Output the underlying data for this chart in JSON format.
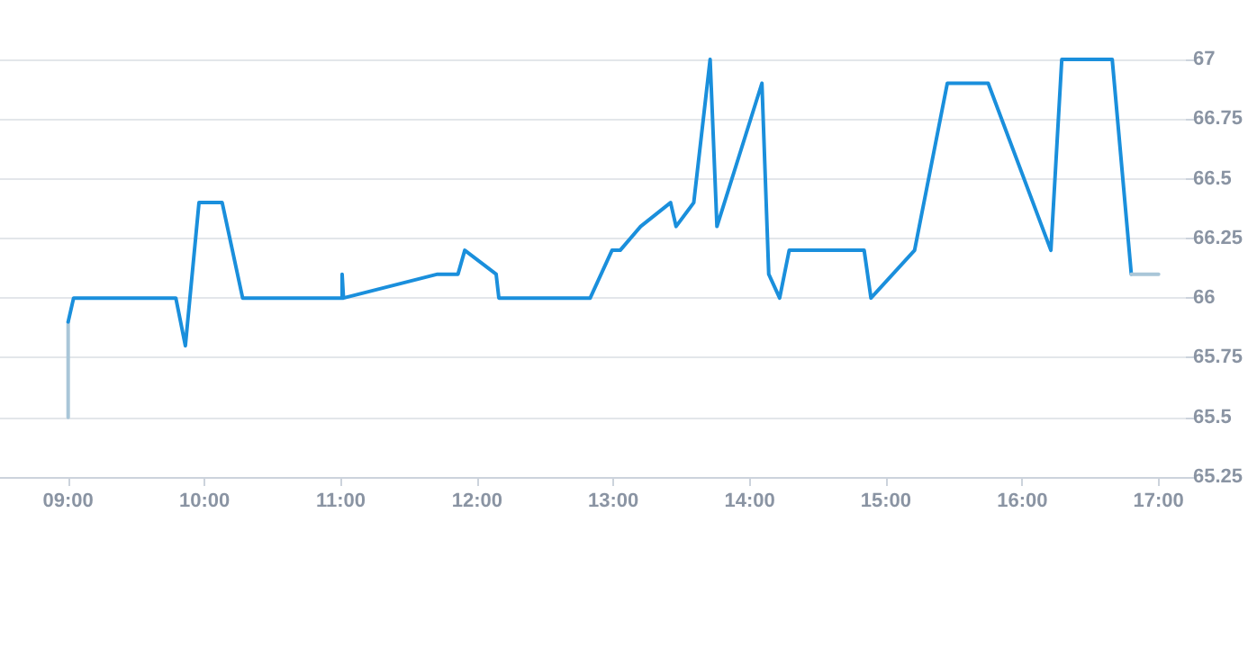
{
  "chart_data": {
    "type": "line",
    "marker": "none",
    "grid": "y",
    "line_style": "solid",
    "xlim": [
      8.5,
      17.2
    ],
    "ylim": [
      65.25,
      67
    ],
    "xticks": [
      {
        "value": 9,
        "label": "09:00"
      },
      {
        "value": 10,
        "label": "10:00"
      },
      {
        "value": 11,
        "label": "11:00"
      },
      {
        "value": 12,
        "label": "12:00"
      },
      {
        "value": 13,
        "label": "13:00"
      },
      {
        "value": 14,
        "label": "14:00"
      },
      {
        "value": 15,
        "label": "15:00"
      },
      {
        "value": 16,
        "label": "16:00"
      },
      {
        "value": 17,
        "label": "17:00"
      }
    ],
    "yticks": [
      65.25,
      65.5,
      65.75,
      66,
      66.25,
      66.5,
      66.75,
      67
    ],
    "series": [
      {
        "color": "#a9c6d8",
        "x": [
          9,
          9
        ],
        "values": [
          65.5,
          65.9
        ]
      },
      {
        "color": "#1a8fdc",
        "x": [
          9,
          9.04,
          9.79,
          9.86,
          9.96,
          10.13,
          10.28,
          11.01,
          11.01,
          11.02,
          11.71,
          11.86,
          11.91,
          12.14,
          12.16,
          12.83,
          12.99,
          13.05,
          13.2,
          13.42,
          13.46,
          13.59,
          13.71,
          13.76,
          14.09,
          14.14,
          14.22,
          14.29,
          14.84,
          14.89,
          15.21,
          15.45,
          15.75,
          16.21,
          16.29,
          16.66,
          16.8
        ],
        "values": [
          65.9,
          66,
          66,
          65.8,
          66.4,
          66.4,
          66,
          66,
          66.1,
          66,
          66.1,
          66.1,
          66.2,
          66.1,
          66,
          66,
          66.2,
          66.2,
          66.3,
          66.4,
          66.3,
          66.4,
          67,
          66.3,
          66.9,
          66.1,
          66,
          66.2,
          66.2,
          66,
          66.2,
          66.9,
          66.9,
          66.2,
          67,
          67,
          66.1
        ]
      },
      {
        "color": "#a9c6d8",
        "x": [
          16.8,
          17
        ],
        "values": [
          66.1,
          66.1
        ]
      }
    ]
  }
}
